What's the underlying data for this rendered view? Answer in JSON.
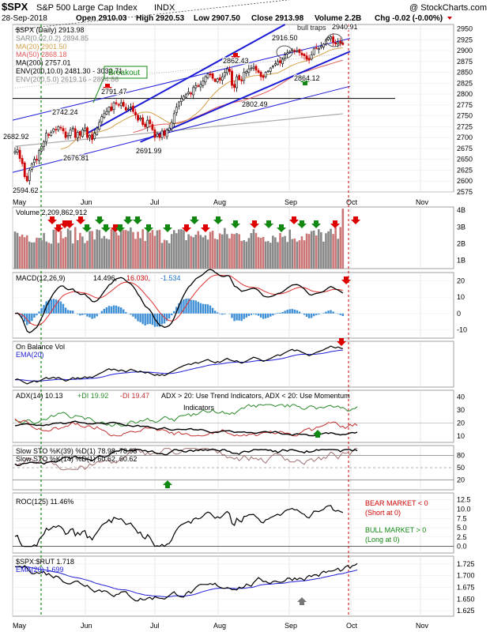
{
  "header": {
    "symbol": "$SPX",
    "name": "S&P 500 Large Cap Index",
    "exchange": "INDX",
    "source": "@ StockCharts.com",
    "date": "28-Sep-2018",
    "open": "Open 2910.03",
    "high": "High 2920.53",
    "low": "Low 2907.50",
    "close": "Close 2913.98",
    "volume": "Volume 2.2B",
    "chg": "Chg -0.02 (-0.00%)"
  },
  "colors": {
    "up_candle": "#000000",
    "down_candle": "#cc0000",
    "channel": "#1c1cd6",
    "ma20": "#d4a04a",
    "ma50": "#e05a5a",
    "ma200": "#222222",
    "env200_10": "#444444",
    "env200_5": "#aaaaaa",
    "vol_up": "#888888",
    "vol_down": "#cc7777",
    "arrow_red": "#dd0000",
    "arrow_green": "#118811",
    "ema_blue": "#1c1cd6"
  },
  "chart_data": [
    {
      "type": "candlestick",
      "panel": "price",
      "legend": [
        "$SPX (Daily) 2913.98",
        "SAR(0.02,0.2) 2894.85",
        "MA(20) 2901.50",
        "MA(50) 2868.18",
        "MA(200) 2757.01",
        "ENV(200,10.0) 2481.30 - 3032.71",
        "ENV(200,5.0) 2619.16 - 2894.86"
      ],
      "ylim": [
        2575,
        2960
      ],
      "yticks": [
        2575,
        2600,
        2625,
        2650,
        2675,
        2700,
        2725,
        2750,
        2775,
        2800,
        2825,
        2850,
        2875,
        2900,
        2925,
        2950
      ],
      "xticks": [
        "May",
        "Jun",
        "Jul",
        "Aug",
        "Sep",
        "Oct",
        "Nov"
      ],
      "annotations": [
        {
          "text": "2682.92"
        },
        {
          "text": "2594.62"
        },
        {
          "text": "2742.24"
        },
        {
          "text": "2676.81"
        },
        {
          "text": "2791.47"
        },
        {
          "text": "2691.99"
        },
        {
          "text": "2862.43"
        },
        {
          "text": "2802.49"
        },
        {
          "text": "2916.50"
        },
        {
          "text": "2864.12"
        },
        {
          "text": "2940.91"
        },
        {
          "text": "Breakout"
        },
        {
          "text": "bull traps"
        }
      ],
      "horizontal_line": 2790,
      "close_series": [
        2668,
        2672,
        2652,
        2640,
        2610,
        2600,
        2625,
        2640,
        2650,
        2648,
        2670,
        2680,
        2690,
        2710,
        2705,
        2712,
        2720,
        2718,
        2725,
        2722,
        2715,
        2700,
        2705,
        2718,
        2722,
        2700,
        2712,
        2705,
        2718,
        2722,
        2700,
        2705,
        2695,
        2710,
        2722,
        2735,
        2748,
        2755,
        2760,
        2770,
        2762,
        2780,
        2778,
        2776,
        2780,
        2772,
        2763,
        2766,
        2770,
        2760,
        2752,
        2740,
        2745,
        2730,
        2725,
        2740,
        2732,
        2718,
        2700,
        2708,
        2700,
        2715,
        2705,
        2718,
        2722,
        2735,
        2755,
        2770,
        2782,
        2790,
        2795,
        2800,
        2805,
        2800,
        2815,
        2820,
        2818,
        2822,
        2830,
        2840,
        2846,
        2844,
        2836,
        2829,
        2835,
        2832,
        2840,
        2850,
        2858,
        2852,
        2820,
        2815,
        2840,
        2833,
        2830,
        2850,
        2852,
        2858,
        2860,
        2862,
        2855,
        2850,
        2840,
        2838,
        2850,
        2853,
        2860,
        2864,
        2870,
        2875,
        2872,
        2880,
        2890,
        2895,
        2898,
        2902,
        2898,
        2900,
        2895,
        2890,
        2888,
        2880,
        2878,
        2890,
        2904,
        2905,
        2905,
        2910,
        2915,
        2925,
        2930,
        2932,
        2918,
        2915,
        2919,
        2916,
        2914
      ]
    },
    {
      "type": "bar",
      "panel": "volume",
      "legend": "Volume 2,209,862,912",
      "yticks": [
        "1B",
        "2B",
        "3B",
        "4B"
      ]
    },
    {
      "type": "line",
      "panel": "macd",
      "legend_main": "MACD(12,26,9)",
      "legend_macd": "14.496,",
      "legend_signal": "16.030,",
      "legend_hist": "-1.534",
      "yticks": [
        -10,
        0,
        10,
        20
      ]
    },
    {
      "type": "line",
      "panel": "obv",
      "legend": "On Balance Vol",
      "legend_ema": "EMA(20)"
    },
    {
      "type": "line",
      "panel": "adx",
      "legend": "ADX(14) 10.13",
      "legend_pdi": "+DI 19.92",
      "legend_mdi": "-DI 19.47",
      "legend_note": "ADX > 20: Use Trend Indicators, ADX < 20: Use Momentum Indicators",
      "yticks": [
        10,
        20,
        30,
        40
      ]
    },
    {
      "type": "line",
      "panel": "sto",
      "legend_1": "Slow STO %K(39) %D(1) 78.98, 78.98",
      "legend_2": "Slow STO %K(14) %D(1) 60.62, 60.62",
      "yticks": [
        20,
        50,
        80
      ]
    },
    {
      "type": "line",
      "panel": "roc",
      "legend": "ROC(125) 11.46%",
      "note_bear_1": "BEAR MARKET < 0",
      "note_bear_2": "(Short at 0)",
      "note_bull_1": "BULL MARKET > 0",
      "note_bull_2": "(Long at 0)",
      "yticks": [
        "0.0",
        "2.5",
        "5.0",
        "7.5",
        "10.0",
        "12.5"
      ]
    },
    {
      "type": "line",
      "panel": "ratio",
      "legend": "$SPX:$RUT 1.718",
      "legend_ema": "EMA(20) 1.699",
      "yticks": [
        "1.625",
        "1.650",
        "1.675",
        "1.700",
        "1.725"
      ]
    }
  ]
}
